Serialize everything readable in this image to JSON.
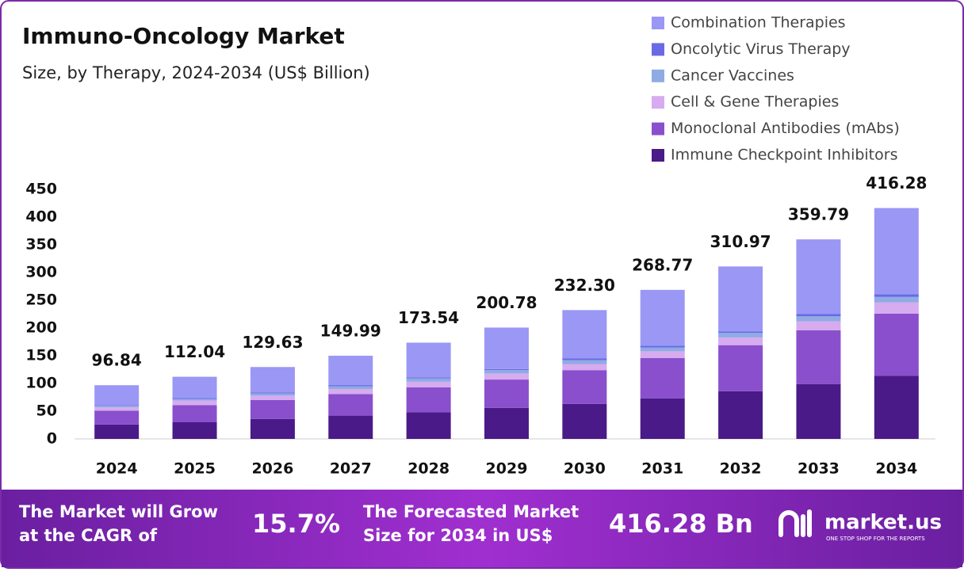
{
  "chart_data": {
    "type": "stacked-bar",
    "title": "Immuno-Oncology Market",
    "subtitle": "Size, by Therapy, 2024-2034 (US$ Billion)",
    "categories": [
      "2024",
      "2025",
      "2026",
      "2027",
      "2028",
      "2029",
      "2030",
      "2031",
      "2032",
      "2033",
      "2034"
    ],
    "series": [
      {
        "name": "Immune Checkpoint Inhibitors",
        "color": "#4a1a88",
        "values": [
          26,
          30,
          36,
          42,
          48,
          56,
          63,
          73,
          86,
          99,
          114
        ]
      },
      {
        "name": "Monoclonal Antibodies (mAbs)",
        "color": "#8a4fcc",
        "values": [
          25,
          31,
          34,
          39,
          45,
          51,
          61,
          73,
          83,
          97,
          112
        ]
      },
      {
        "name": "Cell & Gene Therapies",
        "color": "#d6abef",
        "values": [
          6,
          8,
          8,
          9,
          10,
          11,
          11,
          12,
          14,
          16,
          20
        ]
      },
      {
        "name": "Cancer Vaccines",
        "color": "#8fabe3",
        "values": [
          3,
          3,
          4,
          5,
          6,
          6,
          7,
          7,
          8,
          9,
          10
        ]
      },
      {
        "name": "Oncolytic Virus Therapy",
        "color": "#6a6ae6",
        "values": [
          1,
          1.5,
          1.5,
          2,
          2,
          2,
          3,
          3,
          3,
          4,
          5
        ]
      },
      {
        "name": "Combination Therapies",
        "color": "#9b97f5",
        "values": [
          35.84,
          38.54,
          46.13,
          52.99,
          62.54,
          74.78,
          87.3,
          100.77,
          116.97,
          134.79,
          155.28
        ]
      }
    ],
    "totals": {
      "values": [
        96.84,
        112.04,
        129.63,
        149.99,
        173.54,
        200.78,
        232.3,
        268.77,
        310.97,
        359.79,
        416.28
      ],
      "value_labels": [
        "96.84",
        "112.04",
        "129.63",
        "149.99",
        "173.54",
        "200.78",
        "232.30",
        "268.77",
        "310.97",
        "359.79",
        "416.28"
      ]
    },
    "ylim": [
      0,
      450
    ],
    "yticks": [
      0,
      50,
      100,
      150,
      200,
      250,
      300,
      350,
      400,
      450
    ],
    "grid": false
  },
  "footer": {
    "cagr_text": [
      "The Market will Grow",
      "at the CAGR of"
    ],
    "cagr_value": "15.7%",
    "forecast_text": [
      "The Forecasted Market",
      "Size for 2034 in US$"
    ],
    "forecast_value": "416.28 Bn",
    "brand": "market.us",
    "tagline": "ONE STOP SHOP FOR THE REPORTS"
  }
}
